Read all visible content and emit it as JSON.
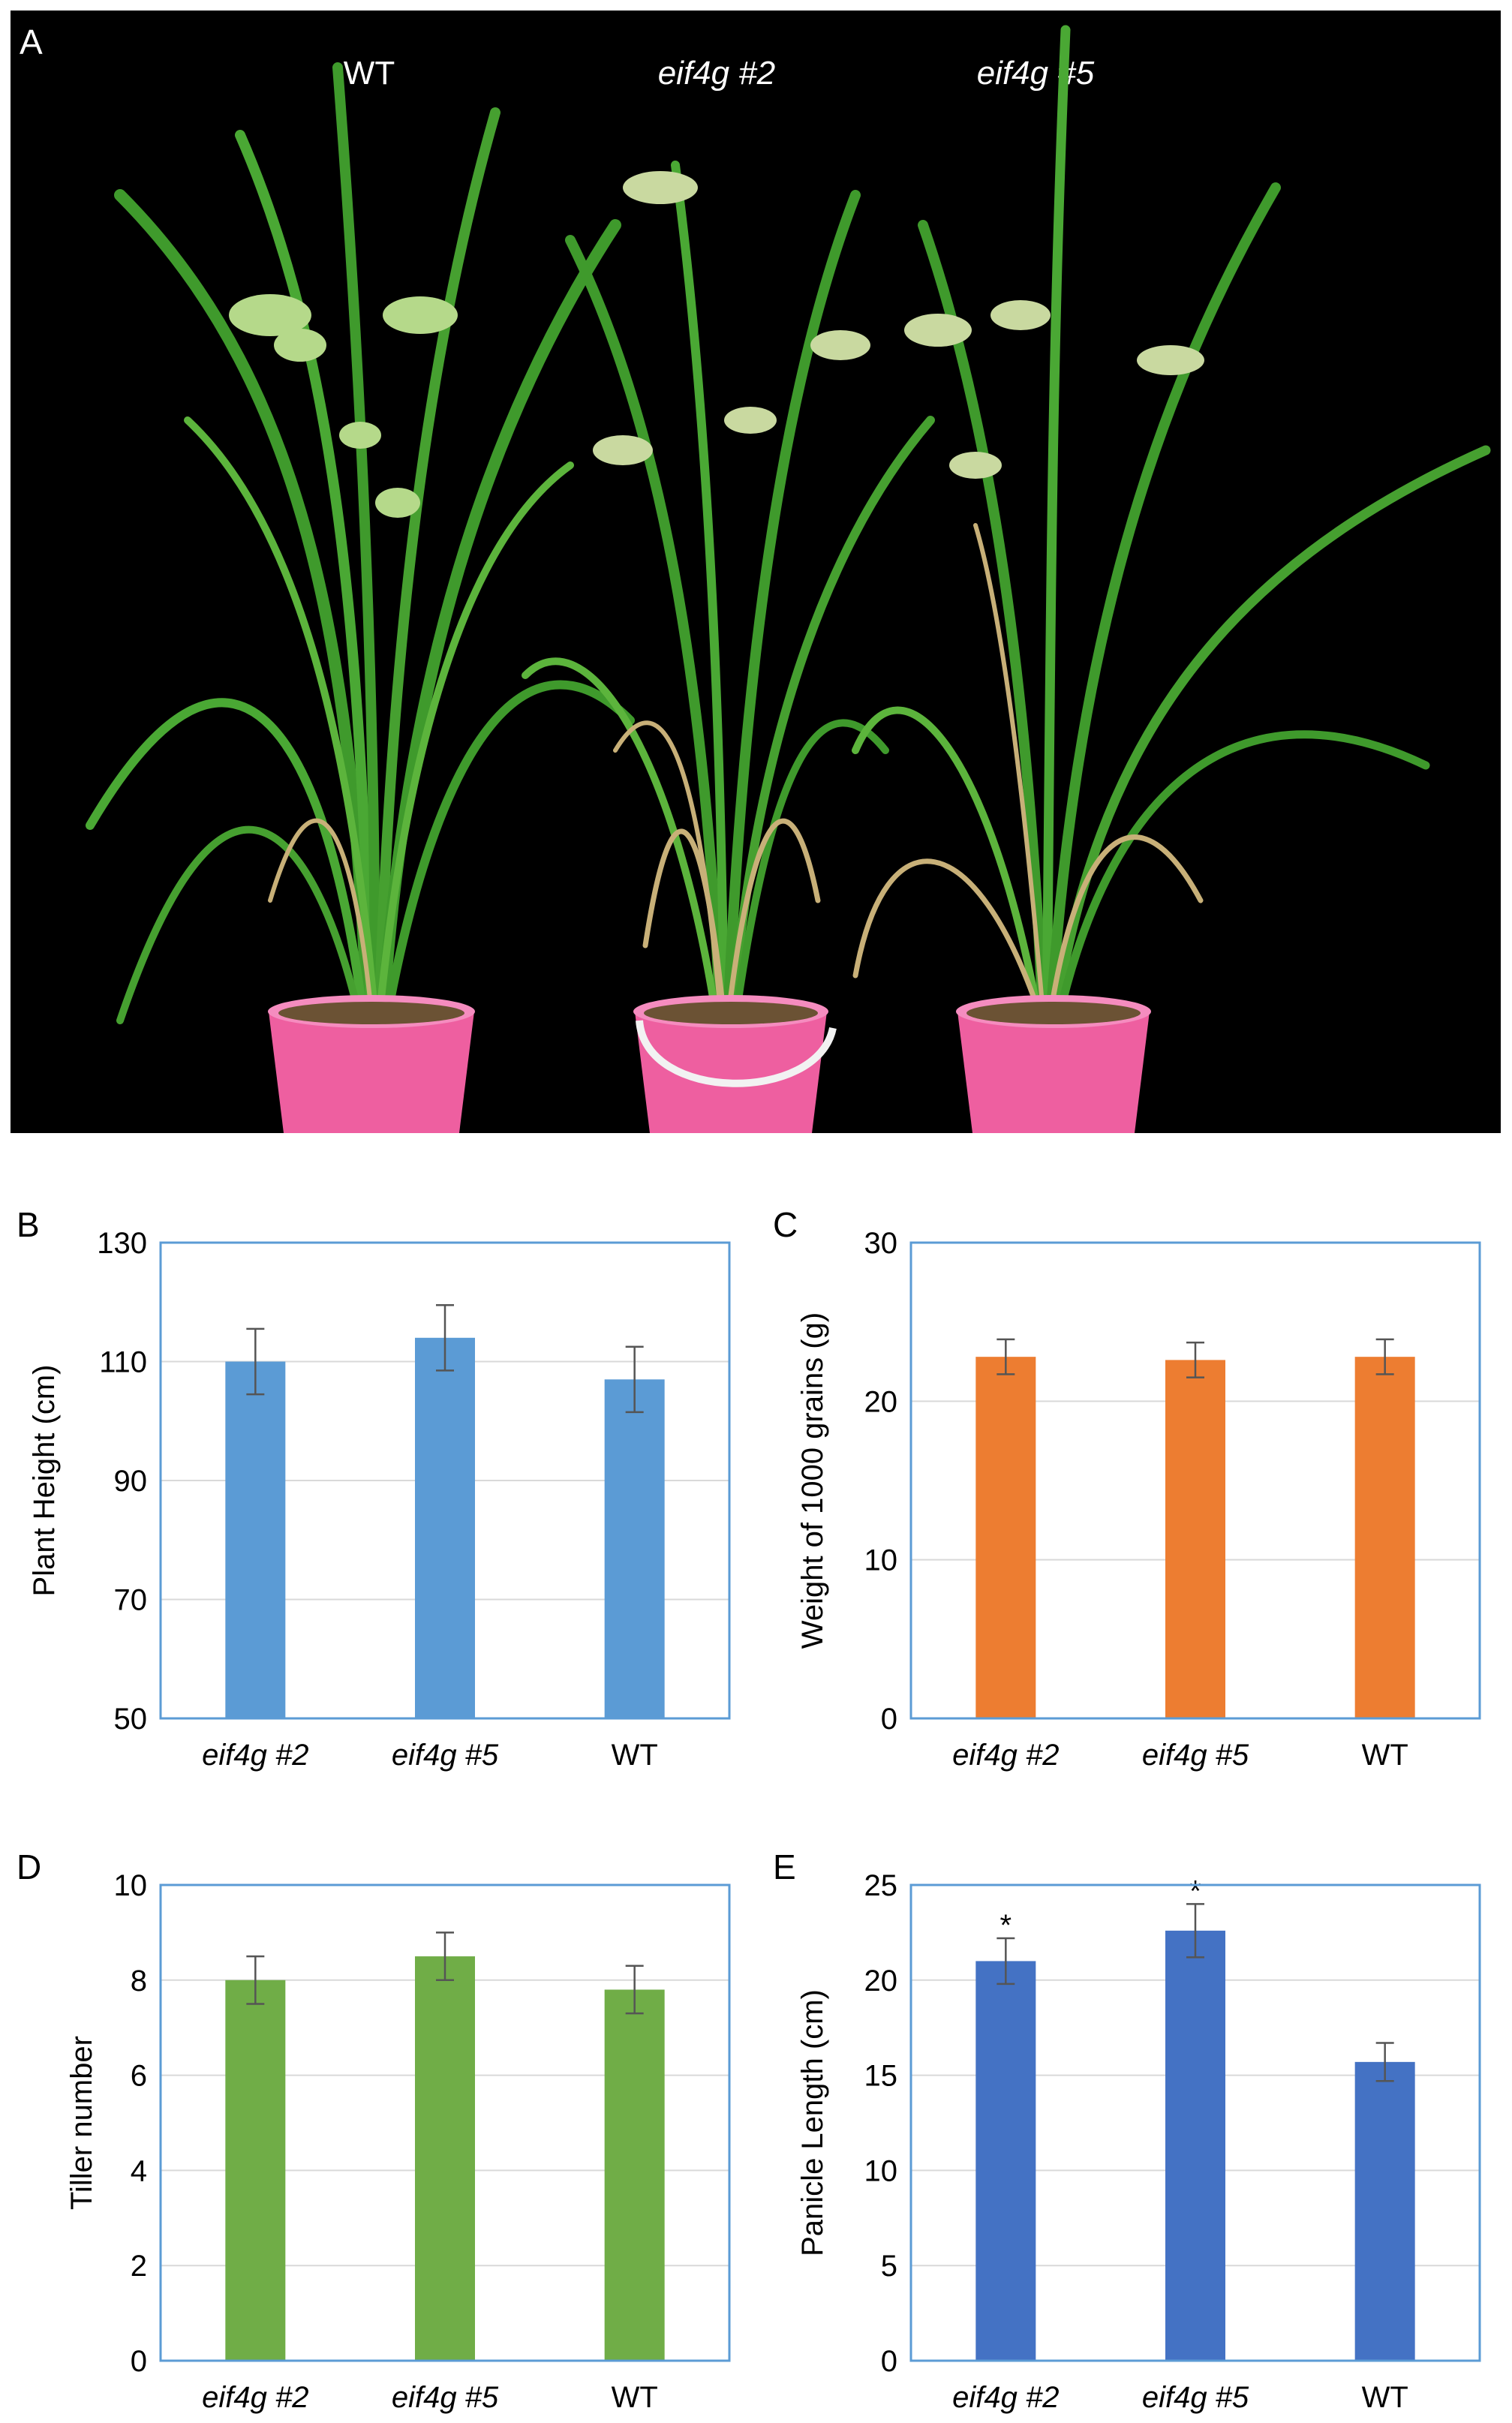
{
  "colors": {
    "photo_bg": "#000000",
    "frame": "#5B9BD5",
    "grid": "#D9D9D9",
    "panel_b_bar": "#5B9BD5",
    "panel_c_bar": "#ED7D31",
    "panel_d_bar": "#70AD47",
    "panel_e_bar": "#4472C4",
    "leaf_green": "#3f9a2c",
    "leaf_light": "#7bc45a",
    "leaf_dry": "#c8b078",
    "pot": "#ee5fa0",
    "pot_rim": "#f58cbf",
    "soil": "#6b5234"
  },
  "panel_a": {
    "letter": "A",
    "plants": [
      {
        "label": "WT",
        "italic": false
      },
      {
        "label": "eif4g #2",
        "italic": true
      },
      {
        "label": "eif4g #5",
        "italic": true
      }
    ]
  },
  "chart_data": [
    {
      "panel": "B",
      "type": "bar",
      "categories": [
        "eif4g #2",
        "eif4g #5",
        "WT"
      ],
      "values": [
        110,
        114,
        107
      ],
      "errors": [
        5.5,
        5.5,
        5.5
      ],
      "ylabel": "Plant Height (cm)",
      "ylim": [
        50,
        130
      ],
      "yticks": [
        50,
        70,
        90,
        110,
        130
      ],
      "ytick_labels": [
        "50",
        "70",
        "90",
        "110",
        "130"
      ],
      "grid": true,
      "annotations": [
        "",
        "",
        ""
      ],
      "color_key": "panel_b_bar"
    },
    {
      "panel": "C",
      "type": "bar",
      "categories": [
        "eif4g #2",
        "eif4g #5",
        "WT"
      ],
      "values": [
        22.8,
        22.6,
        22.8
      ],
      "errors": [
        1.1,
        1.1,
        1.1
      ],
      "ylabel": "Weight of 1000 grains (g)",
      "ylim": [
        0,
        30
      ],
      "yticks": [
        0,
        10,
        20,
        30
      ],
      "ytick_labels": [
        "0",
        "10",
        "20",
        "30"
      ],
      "grid": true,
      "annotations": [
        "",
        "",
        ""
      ],
      "color_key": "panel_c_bar"
    },
    {
      "panel": "D",
      "type": "bar",
      "categories": [
        "eif4g #2",
        "eif4g #5",
        "WT"
      ],
      "values": [
        8.0,
        8.5,
        7.8
      ],
      "errors": [
        0.5,
        0.5,
        0.5
      ],
      "ylabel": "Tiller number",
      "ylim": [
        0,
        10
      ],
      "yticks": [
        0,
        2,
        4,
        6,
        8,
        10
      ],
      "ytick_labels": [
        "0",
        "2",
        "4",
        "6",
        "8",
        "10"
      ],
      "grid": true,
      "annotations": [
        "",
        "",
        ""
      ],
      "color_key": "panel_d_bar"
    },
    {
      "panel": "E",
      "type": "bar",
      "categories": [
        "eif4g #2",
        "eif4g #5",
        "WT"
      ],
      "values": [
        21.0,
        22.6,
        15.7
      ],
      "errors": [
        1.2,
        1.4,
        1.0
      ],
      "ylabel": "Panicle Length (cm)",
      "ylim": [
        0,
        25
      ],
      "yticks": [
        0,
        5,
        10,
        15,
        20,
        25
      ],
      "ytick_labels": [
        "0",
        "5",
        "10",
        "15",
        "20",
        "25"
      ],
      "grid": true,
      "annotations": [
        "*",
        "*",
        ""
      ],
      "color_key": "panel_e_bar"
    }
  ]
}
